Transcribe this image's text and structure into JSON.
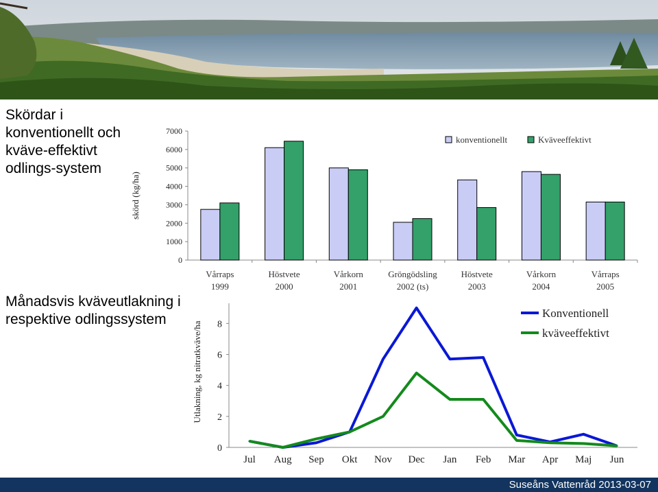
{
  "headings": {
    "yield": "Skördar i konventionellt och kväve-effektivt odlings-system",
    "leaching": "Månadsvis kväveutlakning i respektive odlingssystem"
  },
  "footer": "Suseåns Vattenråd 2013-03-07",
  "colors": {
    "conventional_bar": "#c9cdf5",
    "efficient_bar": "#34a06a",
    "conventional_line": "#0a18d6",
    "efficient_line": "#138a1c",
    "footer_bg": "#12345e"
  },
  "chart_data": [
    {
      "type": "bar",
      "ylabel": "skörd (kg/ha)",
      "ylim": [
        0,
        7000
      ],
      "yticks": [
        0,
        1000,
        2000,
        3000,
        4000,
        5000,
        6000,
        7000
      ],
      "categories": [
        [
          "Vårraps",
          "1999"
        ],
        [
          "Höstvete",
          "2000"
        ],
        [
          "Vårkorn",
          "2001"
        ],
        [
          "Gröngödsling",
          "2002 (ts)"
        ],
        [
          "Höstvete",
          "2003"
        ],
        [
          "Vårkorn",
          "2004"
        ],
        [
          "Vårraps",
          "2005"
        ]
      ],
      "series": [
        {
          "name": "konventionellt",
          "values": [
            2750,
            6100,
            5000,
            2050,
            4350,
            4800,
            3150
          ]
        },
        {
          "name": "Kväveeffektivt",
          "values": [
            3100,
            6450,
            4900,
            2250,
            2850,
            4650,
            3150
          ]
        }
      ],
      "legend_position": "top-right",
      "grid": false
    },
    {
      "type": "line",
      "ylabel": "Utlakning, kg nitratkväve/ha",
      "ylim": [
        0,
        9.3
      ],
      "yticks": [
        0,
        2,
        4,
        6,
        8
      ],
      "categories": [
        "Jul",
        "Aug",
        "Sep",
        "Okt",
        "Nov",
        "Dec",
        "Jan",
        "Feb",
        "Mar",
        "Apr",
        "Maj",
        "Jun"
      ],
      "series": [
        {
          "name": "Konventionell",
          "values": [
            0.4,
            0.0,
            0.3,
            1.0,
            5.7,
            9.0,
            5.7,
            5.8,
            0.8,
            0.35,
            0.85,
            0.1
          ]
        },
        {
          "name": "kväveeffektivt",
          "values": [
            0.4,
            0.0,
            0.55,
            1.0,
            2.0,
            4.8,
            3.1,
            3.1,
            0.45,
            0.3,
            0.25,
            0.1
          ]
        }
      ],
      "legend_position": "top-right",
      "grid": false
    }
  ]
}
